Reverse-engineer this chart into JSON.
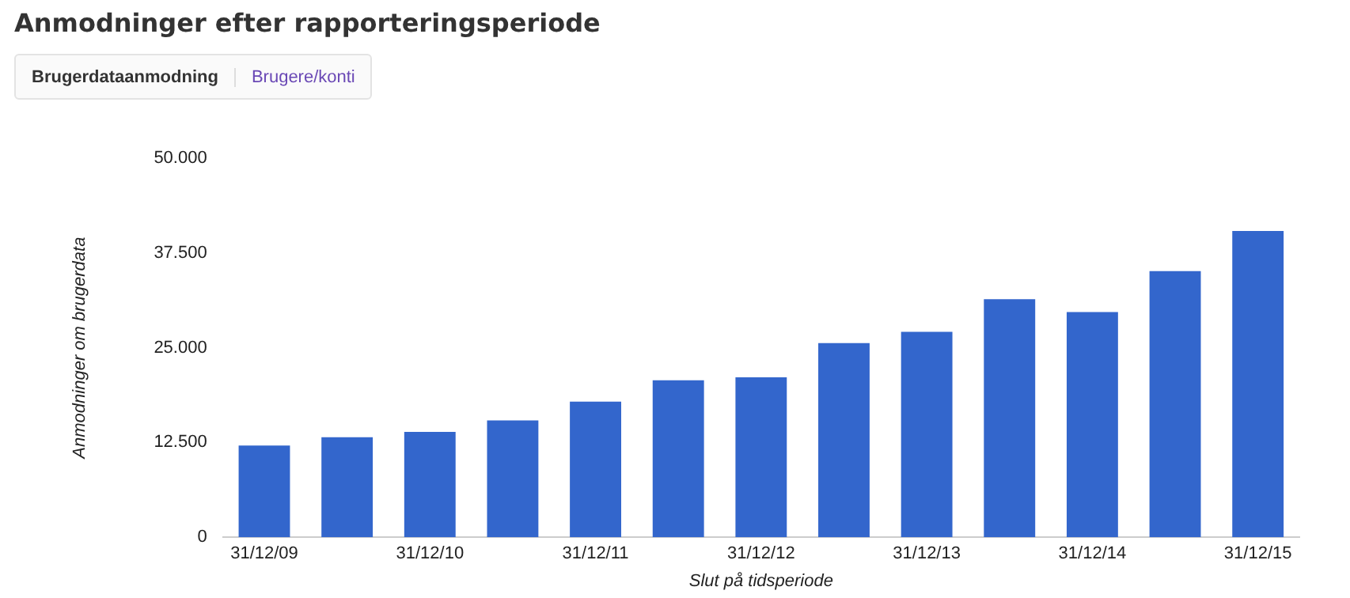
{
  "chart_data": {
    "type": "bar",
    "title": "Anmodninger efter rapporteringsperiode",
    "annotations": [
      "Brugerdataanmodning",
      "Brugere/konti"
    ],
    "xlabel": "Slut på tidsperiode",
    "ylabel": "Anmodninger om brugerdata",
    "categories": [
      "31/12/09",
      null,
      "31/12/10",
      null,
      "31/12/11",
      null,
      "31/12/12",
      null,
      "31/12/13",
      null,
      "31/12/14",
      null,
      "31/12/15"
    ],
    "values": [
      12100,
      13200,
      13900,
      15400,
      17900,
      20700,
      21100,
      25600,
      27100,
      31400,
      29700,
      35100,
      40400
    ],
    "color": "#3366cc",
    "ylim": [
      0,
      50000
    ],
    "yticks": [
      {
        "value": 0,
        "label": "0"
      },
      {
        "value": 12500,
        "label": "12.500"
      },
      {
        "value": 25000,
        "label": "25.000"
      },
      {
        "value": 37500,
        "label": "37.500"
      },
      {
        "value": 50000,
        "label": "50.000"
      }
    ],
    "grid": false,
    "legend": false
  }
}
